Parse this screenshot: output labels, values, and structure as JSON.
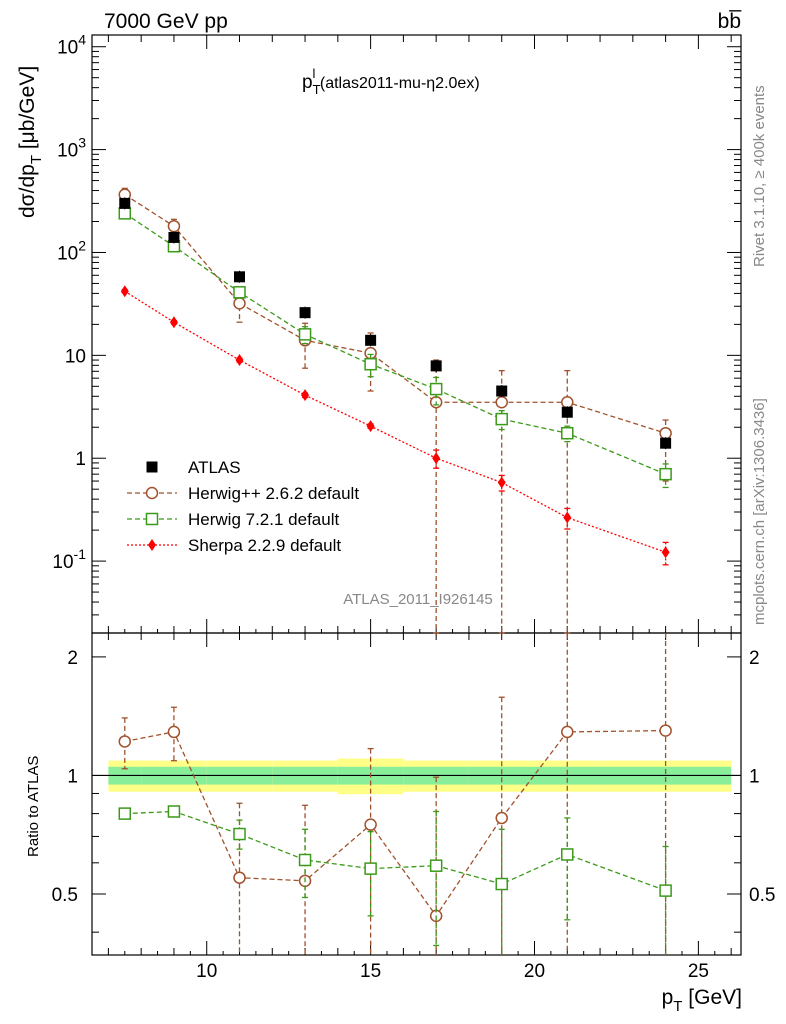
{
  "header": {
    "energy": "7000 GeV pp",
    "process": "bb̅"
  },
  "side": {
    "rivet": "Rivet 3.1.10, ≥ 400k events",
    "mcplots": "mcplots.cern.ch [arXiv:1306.3436]"
  },
  "chart_data": {
    "type": "scatter",
    "title": "p_T^l (atlas2011-mu-η2.0ex)",
    "title_main": "p",
    "title_sub": "T",
    "title_sup": "l",
    "title_rest": " (atlas2011-mu-η2.0ex)",
    "analysis_label": "ATLAS_2011_I926145",
    "ylabel": "dσ/dp_T [μb/GeV]",
    "ylabel_main": "dσ/dp",
    "ylabel_sub": "T",
    "ylabel_rest": " [μb/GeV]",
    "xlabel": "p_T [GeV]",
    "xlabel_main": "p",
    "xlabel_sub": "T",
    "xlabel_rest": " [GeV]",
    "ratio_ylabel": "Ratio to ATLAS",
    "yscale": "log",
    "ylim": [
      0.02,
      13000
    ],
    "xlim": [
      6.5,
      26.3
    ],
    "ratio_ylim": [
      0.35,
      2.3
    ],
    "x_ticks": [
      "10",
      "15",
      "20",
      "25"
    ],
    "y_tick_labels": [
      "10^-1",
      "1",
      "10",
      "10^2",
      "10^3",
      "10^4"
    ],
    "ratio_tick_labels": [
      "0.5",
      "1",
      "2"
    ],
    "legend_position": "lower-left",
    "x": [
      7.5,
      9,
      11,
      13,
      15,
      17,
      19,
      21,
      24
    ],
    "x_bins": [
      [
        7,
        8
      ],
      [
        8,
        10
      ],
      [
        10,
        12
      ],
      [
        12,
        14
      ],
      [
        14,
        16
      ],
      [
        16,
        18
      ],
      [
        18,
        20
      ],
      [
        20,
        22
      ],
      [
        22,
        26
      ]
    ],
    "data": {
      "name": "ATLAS",
      "values": [
        300,
        140,
        58,
        26,
        14,
        7.9,
        4.5,
        2.8,
        1.4
      ],
      "band_stat": [
        0.04,
        0.04,
        0.04,
        0.04,
        0.04,
        0.04,
        0.04,
        0.04,
        0.04
      ],
      "band_total": [
        0.07,
        0.07,
        0.07,
        0.07,
        0.08,
        0.07,
        0.07,
        0.07,
        0.07
      ]
    },
    "series": [
      {
        "name": "Herwig++ 2.6.2 default",
        "color": "#a0522d",
        "marker": "open-circle",
        "values": [
          365,
          180,
          32,
          14,
          10.5,
          3.5,
          3.5,
          3.5,
          1.75
        ],
        "err_lo": [
          55,
          30,
          11,
          6.5,
          6,
          3.49,
          3.49,
          3.49,
          1.15
        ],
        "err_hi": [
          55,
          30,
          11,
          6.5,
          6,
          5.5,
          3.6,
          3.6,
          0.6
        ],
        "ratio": [
          1.22,
          1.29,
          0.55,
          0.54,
          0.75,
          0.44,
          0.78,
          1.29,
          1.3
        ],
        "ratio_lo": [
          0.18,
          0.2,
          0.3,
          0.3,
          0.45,
          0.15,
          0.8,
          1.0,
          1.0
        ],
        "ratio_hi": [
          0.18,
          0.2,
          0.3,
          0.3,
          0.42,
          0.55,
          0.8,
          1.0,
          1.0
        ]
      },
      {
        "name": "Herwig 7.2.1 default",
        "color": "#3c9a1a",
        "marker": "open-square",
        "values": [
          240,
          115,
          41,
          16,
          8.2,
          4.7,
          2.4,
          1.75,
          0.7
        ],
        "err_lo": [
          18,
          8,
          5,
          3,
          2,
          1.4,
          0.5,
          0.3,
          0.18
        ],
        "err_hi": [
          18,
          8,
          5,
          3,
          2,
          1.4,
          0.5,
          0.3,
          0.18
        ],
        "ratio": [
          0.8,
          0.81,
          0.71,
          0.61,
          0.58,
          0.59,
          0.53,
          0.63,
          0.51
        ],
        "ratio_lo": [
          0.02,
          0.02,
          0.06,
          0.12,
          0.14,
          0.22,
          0.2,
          0.2,
          0.2
        ],
        "ratio_hi": [
          0.02,
          0.02,
          0.06,
          0.12,
          0.14,
          0.22,
          0.2,
          0.15,
          0.15
        ]
      },
      {
        "name": "Sherpa 2.2.9 default",
        "color": "#ff0000",
        "marker": "filled-diamond",
        "values": [
          42,
          21,
          9,
          4.1,
          2.05,
          1.0,
          0.58,
          0.265,
          0.122
        ],
        "err_lo": [
          1.5,
          0.8,
          0.4,
          0.2,
          0.1,
          0.2,
          0.1,
          0.06,
          0.03
        ],
        "err_hi": [
          1.5,
          0.8,
          0.4,
          0.2,
          0.1,
          0.2,
          0.1,
          0.06,
          0.03
        ]
      }
    ]
  }
}
